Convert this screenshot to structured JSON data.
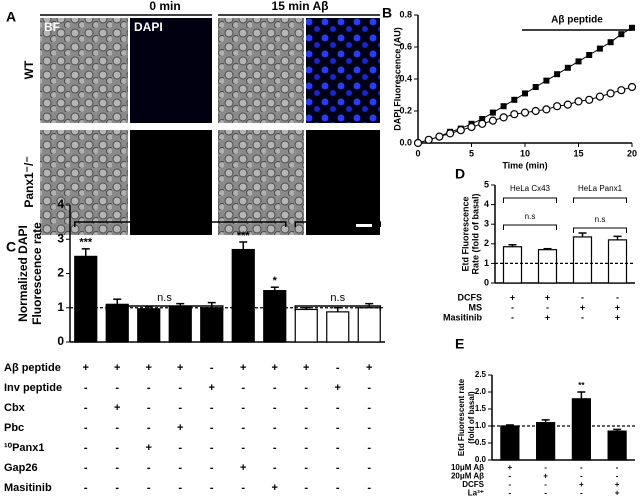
{
  "panel_a": {
    "label": "A",
    "columns": [
      "0 min",
      "15 min Aβ"
    ],
    "channels": [
      "BF",
      "DAPI"
    ],
    "rows": [
      "WT",
      "Panx1⁻/⁻"
    ]
  },
  "chart_data": [
    {
      "type": "line",
      "label": "B",
      "title": "Aβ peptide",
      "xlabel": "Time (min)",
      "ylabel": [
        "DAPI Fluorescence (AU)"
      ],
      "x": [
        0,
        1,
        2,
        3,
        4,
        5,
        6,
        7,
        8,
        9,
        10,
        11,
        12,
        13,
        14,
        15,
        16,
        17,
        18,
        19,
        20
      ],
      "xlim": [
        0,
        20
      ],
      "xticks": [
        0,
        5,
        10,
        15,
        20
      ],
      "ylim": [
        0,
        0.8
      ],
      "yticks": [
        {
          "value": 0,
          "label": "0.0"
        },
        {
          "value": 0.2,
          "label": "0.2"
        },
        {
          "value": 0.4,
          "label": "0.4"
        },
        {
          "value": 0.6,
          "label": "0.6"
        },
        {
          "value": 0.8,
          "label": "0.8"
        }
      ],
      "series": [
        {
          "color": "#000000",
          "marker": "square",
          "values": [
            0,
            0.02,
            0.04,
            0.07,
            0.09,
            0.12,
            0.15,
            0.19,
            0.23,
            0.27,
            0.31,
            0.35,
            0.39,
            0.43,
            0.47,
            0.51,
            0.55,
            0.59,
            0.63,
            0.68,
            0.72
          ]
        },
        {
          "color": "#000000",
          "marker": "open-circle",
          "values": [
            0,
            0.02,
            0.04,
            0.06,
            0.08,
            0.1,
            0.12,
            0.14,
            0.16,
            0.18,
            0.19,
            0.2,
            0.21,
            0.23,
            0.24,
            0.26,
            0.27,
            0.29,
            0.31,
            0.33,
            0.35
          ]
        }
      ]
    },
    {
      "type": "bar",
      "label": "C",
      "ylabel": [
        "Normalized DAPI",
        "Fluorescence rate"
      ],
      "ylim": [
        0,
        4
      ],
      "yticks": [
        0,
        1,
        2,
        3,
        4
      ],
      "values": [
        2.5,
        1.1,
        0.97,
        1.02,
        1.0,
        2.7,
        1.5,
        0.95,
        0.88,
        1.0
      ],
      "errors": [
        0.22,
        0.15,
        0.07,
        0.1,
        0.15,
        0.22,
        0.1,
        0.05,
        0.12,
        0.12
      ],
      "colors": [
        "#000000",
        "#000000",
        "#000000",
        "#000000",
        "#000000",
        "#000000",
        "#000000",
        "#ffffff",
        "#ffffff",
        "#ffffff"
      ],
      "sig_labels": [
        "***",
        null,
        null,
        null,
        null,
        "***",
        "*",
        null,
        null,
        null
      ],
      "groups": [
        "WT",
        "Panx1⁻/⁻"
      ],
      "annotations": [
        "n.s",
        "n.s"
      ],
      "reference_line": 1,
      "conditions": [
        {
          "name": "Aβ peptide",
          "values": [
            "+",
            "+",
            "+",
            "+",
            "-",
            "+",
            "+",
            "+",
            "-",
            "+"
          ]
        },
        {
          "name": "Inv peptide",
          "values": [
            "-",
            "-",
            "-",
            "-",
            "+",
            "-",
            "-",
            "-",
            "+",
            "-"
          ]
        },
        {
          "name": "Cbx",
          "values": [
            "-",
            "+",
            "-",
            "-",
            "-",
            "-",
            "-",
            "-",
            "-",
            "-"
          ]
        },
        {
          "name": "Pbc",
          "values": [
            "-",
            "-",
            "-",
            "+",
            "-",
            "-",
            "-",
            "-",
            "-",
            "-"
          ]
        },
        {
          "name": "¹⁰Panx1",
          "values": [
            "-",
            "-",
            "+",
            "-",
            "-",
            "-",
            "-",
            "-",
            "-",
            "-"
          ]
        },
        {
          "name": "Gap26",
          "values": [
            "-",
            "-",
            "-",
            "-",
            "-",
            "+",
            "-",
            "-",
            "-",
            "-"
          ]
        },
        {
          "name": "Masitinib",
          "values": [
            "-",
            "-",
            "-",
            "-",
            "-",
            "-",
            "+",
            "-",
            "-",
            "-"
          ]
        }
      ]
    },
    {
      "type": "bar",
      "label": "D",
      "ylabel": [
        "Etd Fluorescence",
        "Rate (fold of basal)"
      ],
      "ylim": [
        0,
        5
      ],
      "yticks": [
        0,
        1,
        2,
        3,
        4,
        5
      ],
      "values": [
        1.85,
        1.7,
        2.35,
        2.2
      ],
      "errors": [
        0.1,
        0.05,
        0.2,
        0.18
      ],
      "colors": [
        "#ffffff",
        "#ffffff",
        "#ffffff",
        "#ffffff"
      ],
      "groups": [
        "HeLa Cx43",
        "HeLa Panx1"
      ],
      "annotations": [
        "n.s",
        "n.s"
      ],
      "reference_line": 1,
      "conditions": [
        {
          "name": "DCFS",
          "values": [
            "+",
            "+",
            "-",
            "-"
          ]
        },
        {
          "name": "MS",
          "values": [
            "-",
            "-",
            "+",
            "+"
          ]
        },
        {
          "name": "Masitinib",
          "values": [
            "-",
            "+",
            "-",
            "+"
          ]
        }
      ]
    },
    {
      "type": "bar",
      "label": "E",
      "ylabel": [
        "Etd Fluorescent rate",
        "(fold of basal)"
      ],
      "ylim": [
        0,
        2.5
      ],
      "yticks": [
        {
          "value": 0,
          "label": "0.0"
        },
        {
          "value": 0.5,
          "label": "0.5"
        },
        {
          "value": 1,
          "label": "1.0"
        },
        {
          "value": 1.5,
          "label": "1.5"
        },
        {
          "value": 2,
          "label": "2.0"
        },
        {
          "value": 2.5,
          "label": "2.5"
        }
      ],
      "values": [
        1.0,
        1.1,
        1.8,
        0.85
      ],
      "errors": [
        0.03,
        0.08,
        0.2,
        0.05
      ],
      "colors": [
        "#000000",
        "#000000",
        "#000000",
        "#000000"
      ],
      "sig_labels": [
        null,
        null,
        "**",
        null
      ],
      "reference_line": 1,
      "conditions": [
        {
          "name": "10μM Aβ",
          "values": [
            "+",
            "-",
            "-",
            "-"
          ]
        },
        {
          "name": "20μM Aβ",
          "values": [
            "-",
            "+",
            "-",
            "-"
          ]
        },
        {
          "name": "DCFS",
          "values": [
            "-",
            "-",
            "+",
            "+"
          ]
        },
        {
          "name": "La³⁺",
          "values": [
            "-",
            "-",
            "-",
            "+"
          ]
        }
      ]
    }
  ]
}
